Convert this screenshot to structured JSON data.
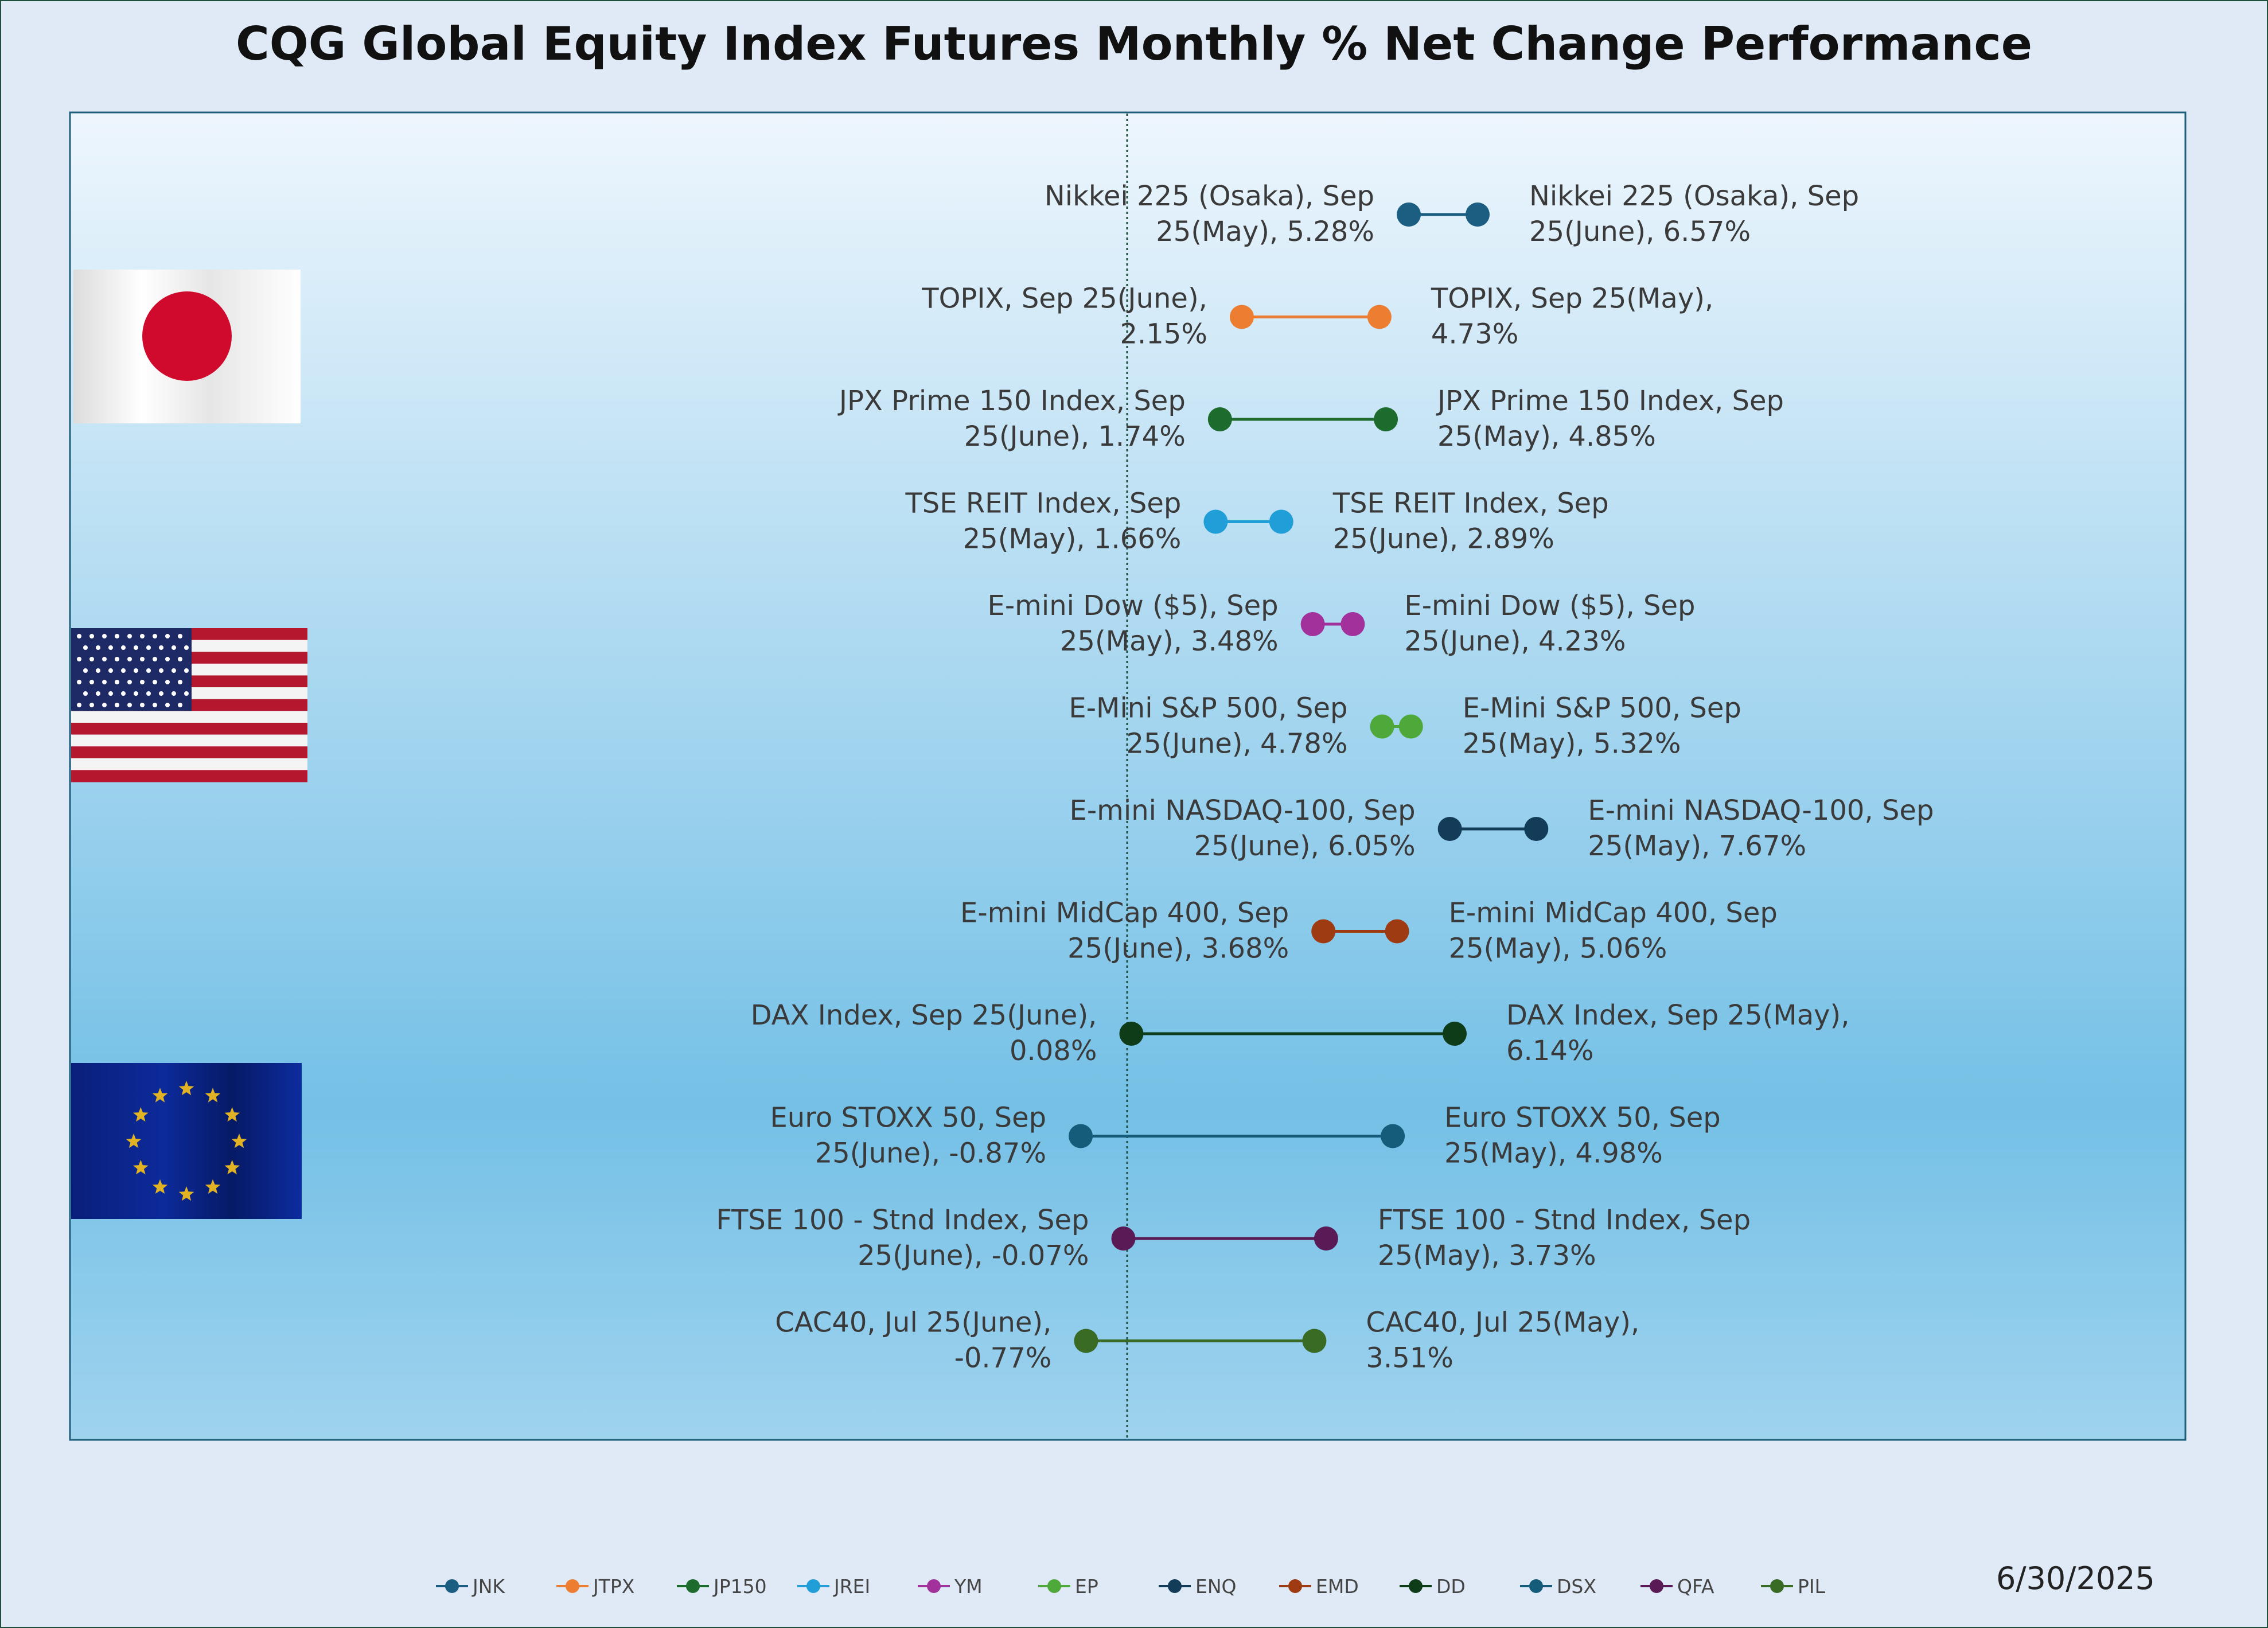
{
  "chart_data": {
    "type": "dumbbell",
    "title": "CQG Global Equity Index Futures Monthly % Net Change Performance",
    "xlabel": "",
    "ylabel": "",
    "xlim": [
      -2.5,
      8.0
    ],
    "reference_line": 0.0,
    "grid": false,
    "legend_position": "bottom",
    "as_of_date": "6/30/2025",
    "rows": [
      {
        "code": "JNK",
        "color": "#1b5e82",
        "may": 5.28,
        "june": 6.57,
        "may_label": "Nikkei 225 (Osaka), Sep 25(May), 5.28%",
        "june_label": "Nikkei 225 (Osaka), Sep 25(June), 6.57%"
      },
      {
        "code": "JTPX",
        "color": "#ed7d31",
        "may": 4.73,
        "june": 2.15,
        "may_label": "TOPIX, Sep 25(May), 4.73%",
        "june_label": "TOPIX, Sep 25(June), 2.15%"
      },
      {
        "code": "JP150",
        "color": "#1e6b2e",
        "may": 4.85,
        "june": 1.74,
        "may_label": "JPX Prime 150 Index, Sep 25(May), 4.85%",
        "june_label": "JPX Prime 150 Index, Sep 25(June), 1.74%"
      },
      {
        "code": "JREI",
        "color": "#1f9ed8",
        "may": 1.66,
        "june": 2.89,
        "may_label": "TSE REIT Index, Sep 25(May), 1.66%",
        "june_label": "TSE REIT Index, Sep 25(June), 2.89%"
      },
      {
        "code": "YM",
        "color": "#a2319b",
        "may": 3.48,
        "june": 4.23,
        "may_label": "E-mini Dow ($5), Sep 25(May), 3.48%",
        "june_label": "E-mini Dow ($5), Sep 25(June), 4.23%"
      },
      {
        "code": "EP",
        "color": "#4fa83a",
        "may": 5.32,
        "june": 4.78,
        "may_label": "E-Mini S&P 500, Sep 25(May), 5.32%",
        "june_label": "E-Mini S&P 500, Sep 25(June), 4.78%"
      },
      {
        "code": "ENQ",
        "color": "#123c57",
        "may": 7.67,
        "june": 6.05,
        "may_label": "E-mini NASDAQ-100, Sep 25(May), 7.67%",
        "june_label": "E-mini NASDAQ-100, Sep 25(June), 6.05%"
      },
      {
        "code": "EMD",
        "color": "#9e3b12",
        "may": 5.06,
        "june": 3.68,
        "may_label": "E-mini MidCap 400, Sep 25(May), 5.06%",
        "june_label": "E-mini MidCap 400, Sep 25(June), 3.68%"
      },
      {
        "code": "DD",
        "color": "#0e3b18",
        "may": 6.14,
        "june": 0.08,
        "may_label": "DAX Index, Sep 25(May), 6.14%",
        "june_label": "DAX Index, Sep 25(June), 0.08%"
      },
      {
        "code": "DSX",
        "color": "#145c7a",
        "may": 4.98,
        "june": -0.87,
        "may_label": "Euro STOXX 50, Sep 25(May), 4.98%",
        "june_label": "Euro STOXX 50, Sep 25(June), -0.87%"
      },
      {
        "code": "QFA",
        "color": "#5a1a55",
        "may": 3.73,
        "june": -0.07,
        "may_label": "FTSE 100 - Stnd Index, Sep 25(May), 3.73%",
        "june_label": "FTSE 100 - Stnd Index, Sep 25(June), -0.07%"
      },
      {
        "code": "PIL",
        "color": "#3a6b25",
        "may": 3.51,
        "june": -0.77,
        "may_label": "CAC40, Jul 25(May), 3.51%",
        "june_label": "CAC40, Jul 25(June), -0.77%"
      }
    ]
  },
  "flags": [
    {
      "name": "japan-flag-icon"
    },
    {
      "name": "usa-flag-icon"
    },
    {
      "name": "eu-flag-icon"
    }
  ]
}
